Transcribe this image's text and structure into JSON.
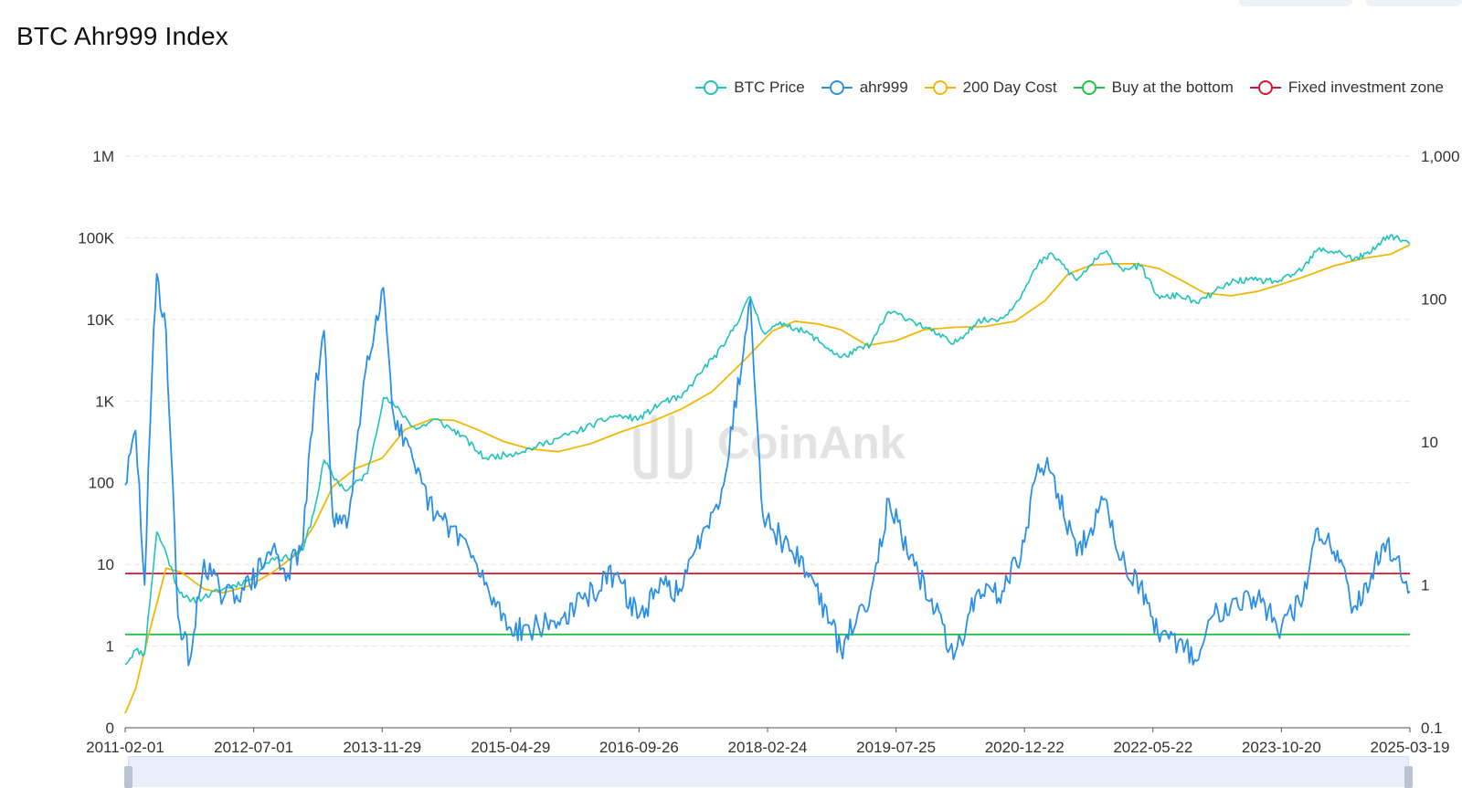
{
  "page": {
    "title": "BTC Ahr999 Index",
    "watermark": "CoinAnk"
  },
  "legend": [
    {
      "label": "BTC Price",
      "color": "#1ec3b9",
      "icon": "circle-line-icon"
    },
    {
      "label": "ahr999",
      "color": "#2b8fe6",
      "icon": "circle-line-icon"
    },
    {
      "label": "200 Day Cost",
      "color": "#f2b706",
      "icon": "circle-line-icon"
    },
    {
      "label": "Buy at the bottom",
      "color": "#20c045",
      "icon": "circle-line-icon"
    },
    {
      "label": "Fixed investment zone",
      "color": "#d9152a",
      "icon": "circle-line-icon"
    }
  ],
  "chart_data": {
    "type": "line",
    "title": "BTC Ahr999 Index",
    "x_ticks": [
      "2011-02-01",
      "2012-07-01",
      "2013-11-29",
      "2015-04-29",
      "2016-09-26",
      "2018-02-24",
      "2019-07-25",
      "2020-12-22",
      "2022-05-22",
      "2023-10-20",
      "2025-03-19"
    ],
    "x_range": [
      "2011-02-01",
      "2025-03-19"
    ],
    "y_left": {
      "scale": "log",
      "ticks": [
        "0",
        "1",
        "10",
        "100",
        "1K",
        "10K",
        "100K",
        "1M"
      ],
      "range": [
        0.1,
        1000000
      ]
    },
    "y_right": {
      "scale": "log",
      "ticks": [
        "0.1",
        "1",
        "10",
        "100",
        "1,000"
      ],
      "range": [
        0.1,
        1000
      ]
    },
    "grid": "horizontal dashed",
    "legend_position": "top-right",
    "series": [
      {
        "name": "BTC Price",
        "axis": "left",
        "color": "#1ec3b9",
        "x": [
          "2011-02-01",
          "2011-03-15",
          "2011-04-20",
          "2011-06-08",
          "2011-07-15",
          "2011-09-01",
          "2011-10-20",
          "2011-12-15",
          "2012-03-01",
          "2012-06-15",
          "2012-09-15",
          "2012-11-15",
          "2013-01-15",
          "2013-03-01",
          "2013-04-10",
          "2013-05-15",
          "2013-07-10",
          "2013-10-01",
          "2013-12-04",
          "2014-01-15",
          "2014-04-15",
          "2014-07-01",
          "2014-10-15",
          "2015-01-14",
          "2015-04-29",
          "2015-08-01",
          "2015-11-05",
          "2016-01-15",
          "2016-06-18",
          "2016-09-26",
          "2017-01-04",
          "2017-03-15",
          "2017-06-12",
          "2017-09-01",
          "2017-12-17",
          "2018-02-06",
          "2018-05-01",
          "2018-08-15",
          "2018-12-15",
          "2019-04-15",
          "2019-06-26",
          "2019-09-15",
          "2019-12-15",
          "2020-03-12",
          "2020-06-15",
          "2020-10-01",
          "2020-12-22",
          "2021-02-15",
          "2021-04-14",
          "2021-07-20",
          "2021-09-15",
          "2021-11-10",
          "2022-01-15",
          "2022-04-01",
          "2022-06-18",
          "2022-09-01",
          "2022-11-21",
          "2023-01-15",
          "2023-04-15",
          "2023-07-15",
          "2023-10-20",
          "2024-01-15",
          "2024-03-14",
          "2024-06-15",
          "2024-08-05",
          "2024-10-15",
          "2024-12-17",
          "2025-01-20",
          "2025-03-19"
        ],
        "values": [
          0.6,
          0.9,
          0.8,
          25,
          14,
          5,
          3.5,
          4,
          5,
          6.5,
          12,
          12,
          15,
          45,
          190,
          120,
          80,
          130,
          1100,
          900,
          450,
          600,
          380,
          200,
          225,
          270,
          350,
          420,
          660,
          610,
          1000,
          1100,
          2500,
          4700,
          19000,
          7000,
          9000,
          6500,
          3400,
          5000,
          12500,
          10200,
          7200,
          5000,
          9400,
          10600,
          23000,
          48000,
          63000,
          30000,
          47000,
          67000,
          42000,
          45000,
          18000,
          20000,
          15800,
          21000,
          30000,
          30000,
          29500,
          42000,
          72000,
          66000,
          54000,
          67000,
          106000,
          102000,
          84000
        ]
      },
      {
        "name": "ahr999",
        "axis": "right",
        "color": "#2b8fe6",
        "x": [
          "2011-02-01",
          "2011-03-15",
          "2011-04-20",
          "2011-05-20",
          "2011-06-08",
          "2011-07-15",
          "2011-09-01",
          "2011-10-20",
          "2011-12-15",
          "2012-03-01",
          "2012-06-15",
          "2012-09-15",
          "2012-11-15",
          "2013-01-15",
          "2013-03-01",
          "2013-04-10",
          "2013-05-15",
          "2013-07-10",
          "2013-10-01",
          "2013-12-04",
          "2014-01-15",
          "2014-04-15",
          "2014-07-01",
          "2014-10-15",
          "2015-01-14",
          "2015-04-29",
          "2015-08-01",
          "2015-11-05",
          "2016-01-15",
          "2016-06-18",
          "2016-09-26",
          "2017-01-04",
          "2017-03-15",
          "2017-06-12",
          "2017-09-01",
          "2017-12-17",
          "2018-02-06",
          "2018-05-01",
          "2018-08-15",
          "2018-12-15",
          "2019-04-15",
          "2019-06-26",
          "2019-09-15",
          "2019-12-15",
          "2020-03-12",
          "2020-06-15",
          "2020-10-01",
          "2020-12-22",
          "2021-02-15",
          "2021-04-14",
          "2021-07-20",
          "2021-09-15",
          "2021-11-10",
          "2022-01-15",
          "2022-04-01",
          "2022-06-18",
          "2022-09-01",
          "2022-11-21",
          "2023-01-15",
          "2023-04-15",
          "2023-07-15",
          "2023-10-20",
          "2024-01-15",
          "2024-03-14",
          "2024-06-15",
          "2024-08-05",
          "2024-10-15",
          "2024-12-17",
          "2025-01-20",
          "2025-03-19"
        ],
        "values": [
          5,
          12,
          1,
          30,
          150,
          60,
          0.6,
          0.3,
          1.5,
          0.8,
          1,
          1.8,
          1.2,
          2,
          20,
          60,
          3,
          2.5,
          40,
          120,
          15,
          6,
          3,
          2.2,
          1,
          0.5,
          0.5,
          0.55,
          0.7,
          1.2,
          0.6,
          1.0,
          0.9,
          2.5,
          5,
          100,
          3,
          2,
          1.2,
          0.35,
          0.9,
          4,
          1.5,
          0.8,
          0.3,
          0.9,
          0.9,
          2,
          7,
          6,
          1.6,
          2.5,
          4,
          1.5,
          1.0,
          0.4,
          0.4,
          0.3,
          0.6,
          0.8,
          0.8,
          0.5,
          0.8,
          2.5,
          1.5,
          0.7,
          1.2,
          2.0,
          1.5,
          0.9
        ]
      },
      {
        "name": "200 Day Cost",
        "axis": "left",
        "color": "#f2b706",
        "x": [
          "2011-02-01",
          "2011-03-15",
          "2011-05-01",
          "2011-07-15",
          "2011-09-15",
          "2011-12-15",
          "2012-03-01",
          "2012-06-15",
          "2012-09-15",
          "2012-12-15",
          "2013-03-01",
          "2013-05-15",
          "2013-08-15",
          "2013-11-29",
          "2014-03-01",
          "2014-06-15",
          "2014-09-15",
          "2014-12-15",
          "2015-04-01",
          "2015-07-15",
          "2015-11-05",
          "2016-03-15",
          "2016-07-15",
          "2016-11-15",
          "2017-03-15",
          "2017-07-15",
          "2017-11-15",
          "2018-03-15",
          "2018-06-15",
          "2018-09-15",
          "2018-12-15",
          "2019-04-01",
          "2019-07-25",
          "2019-11-15",
          "2020-03-15",
          "2020-07-15",
          "2020-11-15",
          "2021-03-15",
          "2021-06-15",
          "2021-09-15",
          "2021-12-15",
          "2022-03-15",
          "2022-06-15",
          "2022-09-15",
          "2022-12-15",
          "2023-04-01",
          "2023-07-15",
          "2023-10-20",
          "2024-01-15",
          "2024-05-15",
          "2024-09-15",
          "2025-01-01",
          "2025-03-19"
        ],
        "values": [
          0.15,
          0.3,
          1.2,
          9,
          8,
          5,
          4.5,
          5.5,
          8,
          13,
          30,
          90,
          150,
          200,
          450,
          600,
          580,
          450,
          320,
          260,
          240,
          300,
          420,
          560,
          800,
          1300,
          3000,
          7200,
          9500,
          8800,
          7500,
          4800,
          5500,
          7500,
          8000,
          8200,
          9500,
          17000,
          36000,
          46000,
          48000,
          48000,
          42000,
          30000,
          21000,
          19500,
          22000,
          27000,
          33000,
          45000,
          56000,
          63000,
          82000
        ]
      },
      {
        "name": "Buy at the bottom",
        "axis": "right",
        "color": "#20c045",
        "x": [
          "2011-02-01",
          "2025-03-19"
        ],
        "values": [
          0.45,
          0.45
        ]
      },
      {
        "name": "Fixed investment zone",
        "axis": "right",
        "color": "#d9152a",
        "x": [
          "2011-02-01",
          "2025-03-19"
        ],
        "values": [
          1.2,
          1.2
        ]
      }
    ]
  }
}
